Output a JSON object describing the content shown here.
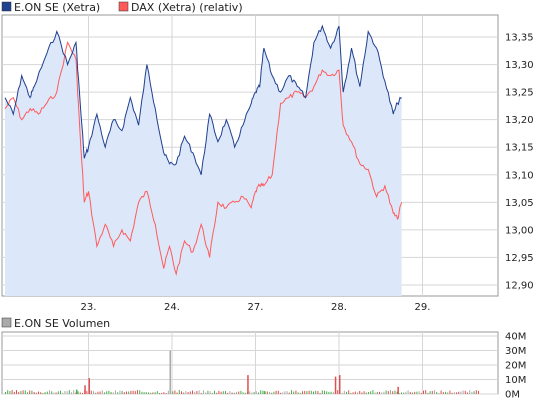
{
  "chart_data": [
    {
      "type": "line",
      "legend_position": "top-left",
      "legend": [
        {
          "name": "E.ON SE (Xetra)",
          "color": "#1f3f8f"
        },
        {
          "name": "DAX (Xetra) (relativ)",
          "color": "#ff5a5a"
        }
      ],
      "x_ticks": [
        "23.",
        "24.",
        "27.",
        "28.",
        "29."
      ],
      "y_ticks": [
        "12,90",
        "12,95",
        "13,00",
        "13,05",
        "13,10",
        "13,15",
        "13,20",
        "13,25",
        "13,30",
        "13,35"
      ],
      "ylim": [
        12.88,
        13.39
      ],
      "grid": true,
      "fill_color": "#dce8fa",
      "series": [
        {
          "name": "E.ON SE (Xetra)",
          "color": "#1f3f8f",
          "x": [
            0,
            0.1,
            0.2,
            0.3,
            0.35,
            0.5,
            0.62,
            0.75,
            0.85,
            0.9,
            0.95,
            1.0,
            1.1,
            1.2,
            1.3,
            1.4,
            1.5,
            1.6,
            1.7,
            1.8,
            1.9,
            1.97,
            2.05,
            2.15,
            2.25,
            2.35,
            2.45,
            2.55,
            2.65,
            2.75,
            2.85,
            2.95,
            3.0,
            3.05,
            3.1,
            3.2,
            3.3,
            3.4,
            3.5,
            3.6,
            3.7,
            3.8,
            3.9,
            4.0,
            4.05,
            4.15,
            4.25,
            4.35,
            4.45,
            4.55,
            4.65,
            4.7,
            4.75
          ],
          "values": [
            13.24,
            13.21,
            13.28,
            13.24,
            13.26,
            13.32,
            13.36,
            13.3,
            13.34,
            13.23,
            13.13,
            13.15,
            13.21,
            13.15,
            13.2,
            13.18,
            13.24,
            13.19,
            13.3,
            13.22,
            13.14,
            13.12,
            13.12,
            13.17,
            13.14,
            13.1,
            13.21,
            13.16,
            13.2,
            13.15,
            13.19,
            13.23,
            13.25,
            13.26,
            13.33,
            13.28,
            13.25,
            13.28,
            13.26,
            13.24,
            13.34,
            13.37,
            13.33,
            13.37,
            13.25,
            13.33,
            13.26,
            13.36,
            13.33,
            13.27,
            13.21,
            13.23,
            13.24
          ]
        },
        {
          "name": "DAX (Xetra) (relativ)",
          "color": "#ff5a5a",
          "x": [
            0,
            0.1,
            0.2,
            0.3,
            0.4,
            0.5,
            0.62,
            0.75,
            0.85,
            0.9,
            0.95,
            1.0,
            1.1,
            1.2,
            1.3,
            1.4,
            1.5,
            1.6,
            1.7,
            1.8,
            1.9,
            1.97,
            2.05,
            2.15,
            2.25,
            2.35,
            2.45,
            2.55,
            2.65,
            2.75,
            2.85,
            2.95,
            3.0,
            3.05,
            3.1,
            3.2,
            3.3,
            3.4,
            3.5,
            3.6,
            3.7,
            3.8,
            3.9,
            4.0,
            4.05,
            4.15,
            4.25,
            4.35,
            4.45,
            4.55,
            4.65,
            4.7,
            4.75
          ],
          "values": [
            13.22,
            13.24,
            13.2,
            13.22,
            13.21,
            13.23,
            13.25,
            13.34,
            13.31,
            13.17,
            13.05,
            13.07,
            12.97,
            13.01,
            12.97,
            13.0,
            12.98,
            13.05,
            13.07,
            13.01,
            12.93,
            12.97,
            12.92,
            12.98,
            12.96,
            13.01,
            12.95,
            13.05,
            13.04,
            13.05,
            13.06,
            13.04,
            13.07,
            13.08,
            13.08,
            13.1,
            13.23,
            13.24,
            13.25,
            13.24,
            13.26,
            13.29,
            13.28,
            13.29,
            13.19,
            13.16,
            13.12,
            13.11,
            13.06,
            13.08,
            13.03,
            13.02,
            13.05
          ]
        }
      ]
    },
    {
      "type": "bar",
      "legend_position": "top-left",
      "legend": [
        {
          "name": "E.ON SE Volumen",
          "color": "#aaaaaa"
        }
      ],
      "y_ticks": [
        "0M",
        "10M",
        "20M",
        "30M",
        "40M"
      ],
      "ylim": [
        0,
        40
      ],
      "grid": true,
      "bar_colors": {
        "up": "#4caf50",
        "down": "#e05050",
        "neutral": "#aaaaaa"
      },
      "spikes": [
        {
          "x": 0.85,
          "value": 3,
          "dir": "up"
        },
        {
          "x": 0.95,
          "value": 6,
          "dir": "down"
        },
        {
          "x": 1.0,
          "value": 11,
          "dir": "down"
        },
        {
          "x": 1.97,
          "value": 30,
          "dir": "neutral"
        },
        {
          "x": 2.9,
          "value": 13,
          "dir": "down"
        },
        {
          "x": 3.1,
          "value": 2,
          "dir": "up"
        },
        {
          "x": 3.95,
          "value": 12,
          "dir": "down"
        },
        {
          "x": 4.0,
          "value": 13,
          "dir": "down"
        },
        {
          "x": 4.7,
          "value": 5,
          "dir": "down"
        }
      ]
    }
  ]
}
